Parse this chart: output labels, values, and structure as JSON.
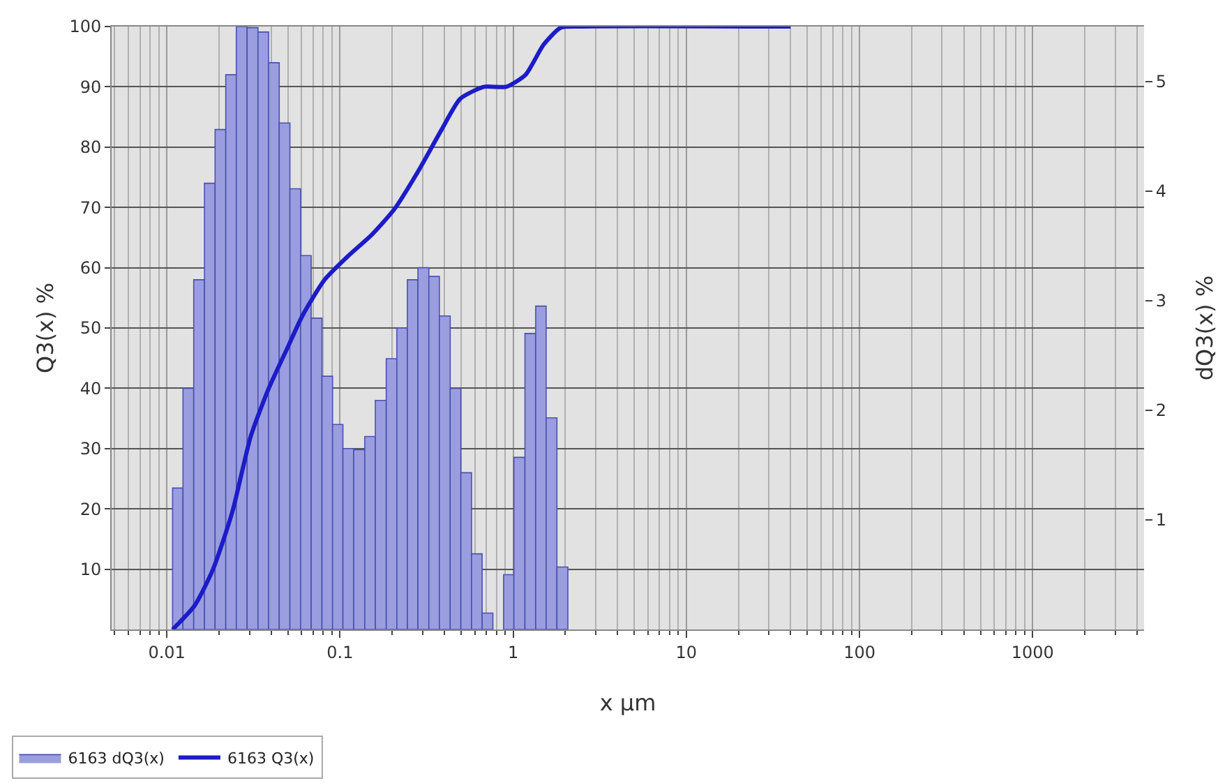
{
  "chart_data": {
    "type": "histogram",
    "xlabel": "x µm",
    "ylabel": "Q3(x) %",
    "y2label": "dQ3(x) %",
    "log": "x",
    "xlim": [
      0.0048,
      4400
    ],
    "xticks": [
      0.01,
      0.1,
      1,
      10,
      100,
      1000
    ],
    "ylim": [
      0,
      100
    ],
    "yticks": [
      10,
      20,
      30,
      40,
      50,
      60,
      70,
      80,
      90,
      100
    ],
    "y2lim": [
      0,
      5.5
    ],
    "y2ticks": [
      1,
      2,
      3,
      4,
      5
    ],
    "grid": true,
    "legend": "bottom left",
    "series": [
      {
        "name": "6163 dQ3(x)",
        "axis": "y2",
        "color": "#9a9ee0",
        "bins": [
          0.0108,
          0.0124,
          0.0143,
          0.0165,
          0.019,
          0.0219,
          0.0252,
          0.0291,
          0.0336,
          0.0387,
          0.0446,
          0.0514,
          0.0592,
          0.0682,
          0.0787,
          0.0906,
          0.104,
          0.12,
          0.139,
          0.16,
          0.185,
          0.213,
          0.245,
          0.282,
          0.326,
          0.375,
          0.433,
          0.499,
          0.575,
          0.662,
          0.764,
          0.881,
          1.01,
          1.17,
          1.35,
          1.55,
          1.79,
          2.07
        ],
        "values": [
          1.29,
          2.2,
          3.19,
          4.07,
          4.56,
          5.06,
          5.5,
          5.49,
          5.45,
          5.17,
          4.62,
          4.02,
          3.41,
          2.84,
          2.31,
          1.87,
          1.65,
          1.64,
          1.76,
          2.09,
          2.47,
          2.75,
          3.19,
          3.3,
          3.22,
          2.86,
          2.2,
          1.43,
          0.69,
          0.15,
          null,
          0.5,
          1.57,
          2.7,
          2.95,
          1.93,
          0.57
        ]
      },
      {
        "name": "6163 Q3(x)",
        "type": "line",
        "color": "#1c1cc8",
        "x": [
          0.0108,
          0.0145,
          0.0185,
          0.0239,
          0.0305,
          0.0388,
          0.0503,
          0.0606,
          0.0815,
          0.112,
          0.153,
          0.206,
          0.283,
          0.388,
          0.494,
          0.678,
          0.912,
          1.18,
          1.5,
          1.88,
          2.48,
          40
        ],
        "values": [
          0,
          4,
          10,
          19.5,
          32,
          40,
          47,
          52,
          58,
          62,
          65.5,
          69.7,
          76,
          83,
          88,
          90,
          90,
          92,
          97,
          99.8,
          100,
          100
        ]
      }
    ]
  }
}
